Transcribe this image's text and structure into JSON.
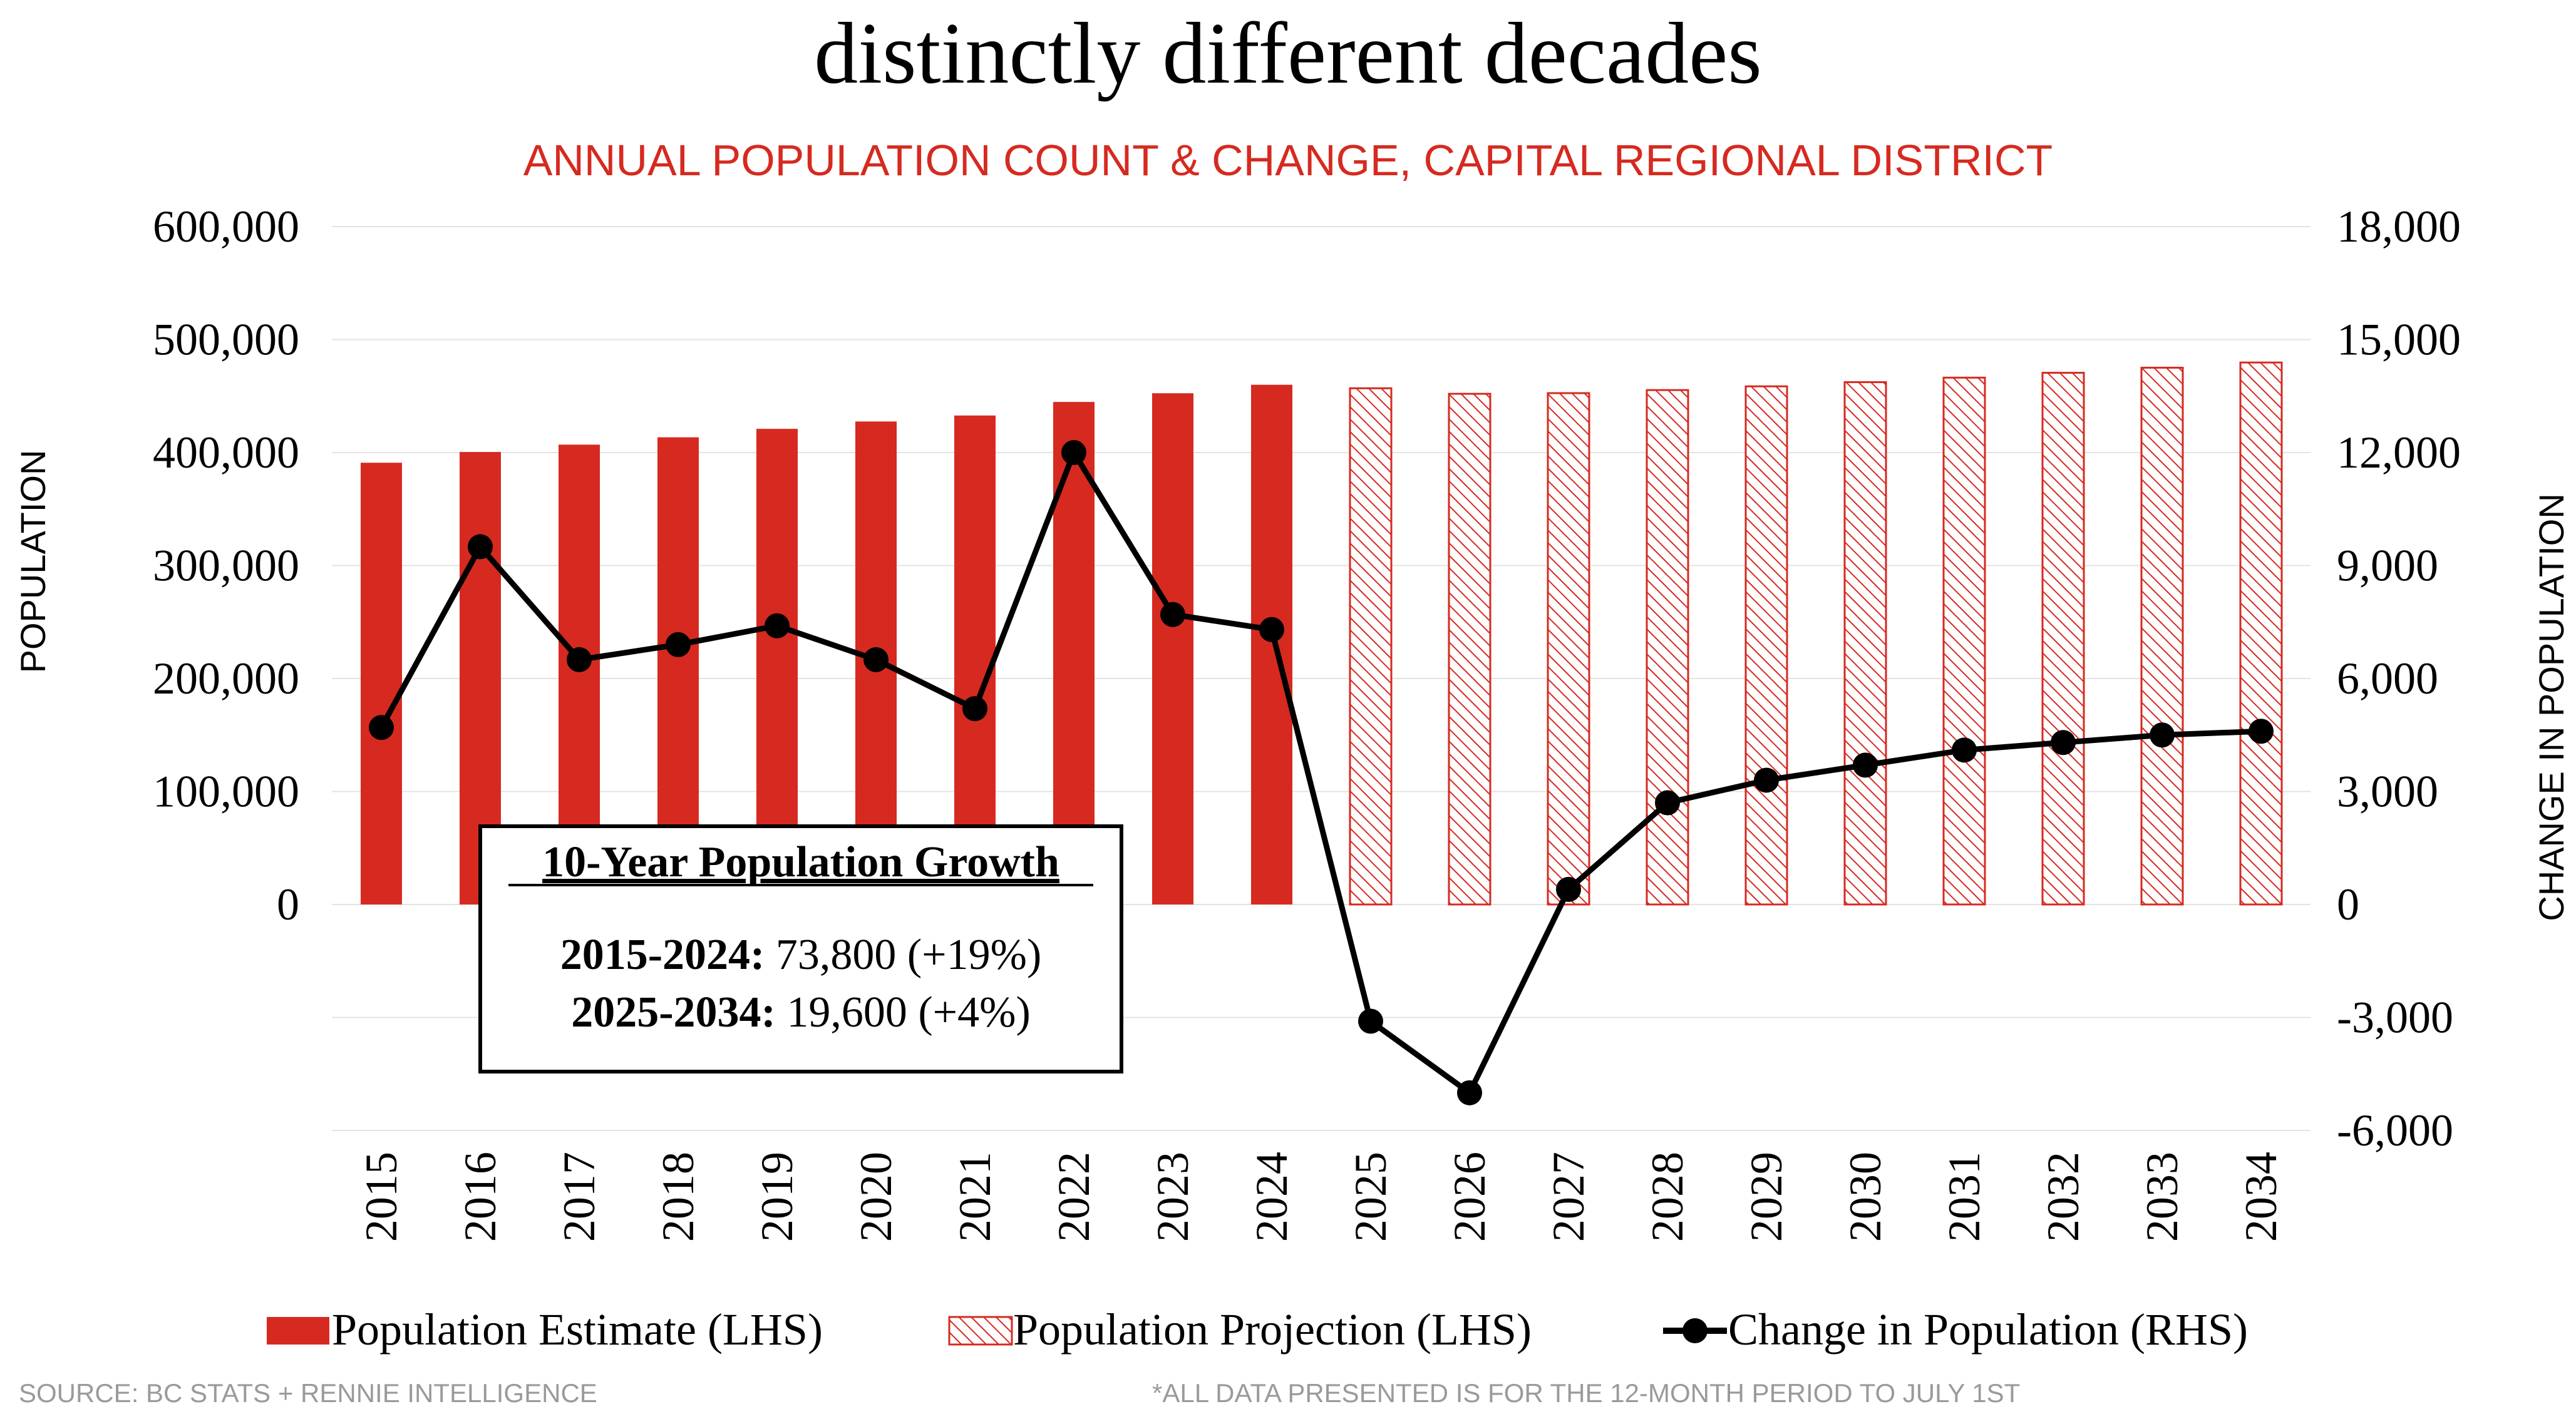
{
  "chart_data": {
    "type": "bar+line",
    "title": "distinctly different decades",
    "subtitle": "ANNUAL POPULATION COUNT & CHANGE, CAPITAL REGIONAL DISTRICT",
    "categories": [
      "2015",
      "2016",
      "2017",
      "2018",
      "2019",
      "2020",
      "2021",
      "2022",
      "2023",
      "2024",
      "2025",
      "2026",
      "2027",
      "2028",
      "2029",
      "2030",
      "2031",
      "2032",
      "2033",
      "2034"
    ],
    "series": [
      {
        "name": "Population Estimate (LHS)",
        "axis": "left",
        "style": "bar-solid",
        "values": [
          391000,
          400500,
          407000,
          413500,
          421000,
          427500,
          432800,
          444800,
          452500,
          460000,
          null,
          null,
          null,
          null,
          null,
          null,
          null,
          null,
          null,
          null
        ]
      },
      {
        "name": "Population Projection (LHS)",
        "axis": "left",
        "style": "bar-hatched",
        "values": [
          null,
          null,
          null,
          null,
          null,
          null,
          null,
          null,
          null,
          null,
          456900,
          452000,
          452600,
          455300,
          458600,
          462300,
          466300,
          470600,
          475100,
          479700
        ]
      },
      {
        "name": "Change in Population (RHS)",
        "axis": "right",
        "style": "line-marker",
        "values": [
          4700,
          9500,
          6500,
          6900,
          7400,
          6500,
          5200,
          12000,
          7700,
          7300,
          -3100,
          -5000,
          400,
          2700,
          3300,
          3700,
          4100,
          4300,
          4500,
          4600
        ]
      }
    ],
    "ylabel_left": "POPULATION",
    "ylabel_right": "CHANGE IN POPULATION",
    "ylim_left": [
      -200000,
      600000
    ],
    "ylim_right": [
      -6000,
      18000
    ],
    "yticks_left": [
      0,
      100000,
      200000,
      300000,
      400000,
      500000,
      600000
    ],
    "yticks_left_labels": [
      "0",
      "100,000",
      "200,000",
      "300,000",
      "400,000",
      "500,000",
      "600,000"
    ],
    "yticks_right": [
      -6000,
      -3000,
      0,
      3000,
      6000,
      9000,
      12000,
      15000,
      18000
    ],
    "yticks_right_labels": [
      "-6,000",
      "-3,000",
      "0",
      "3,000",
      "6,000",
      "9,000",
      "12,000",
      "15,000",
      "18,000"
    ],
    "gridlines": true,
    "legend_position": "bottom",
    "colors": {
      "bar": "#d62a20",
      "line": "#000000",
      "grid": "#e3e3e3",
      "subtitle": "#d62a20",
      "footnote": "#9a9a9a"
    },
    "annotation": {
      "title": "10-Year Population Growth",
      "lines": [
        {
          "label": "2015-2024:",
          "value": "73,800 (+19%)"
        },
        {
          "label": "2025-2034:",
          "value": "19,600 (+4%)"
        }
      ]
    },
    "source": "SOURCE: BC STATS + RENNIE INTELLIGENCE",
    "note": "*ALL DATA PRESENTED IS FOR THE 12-MONTH PERIOD TO JULY 1ST"
  }
}
